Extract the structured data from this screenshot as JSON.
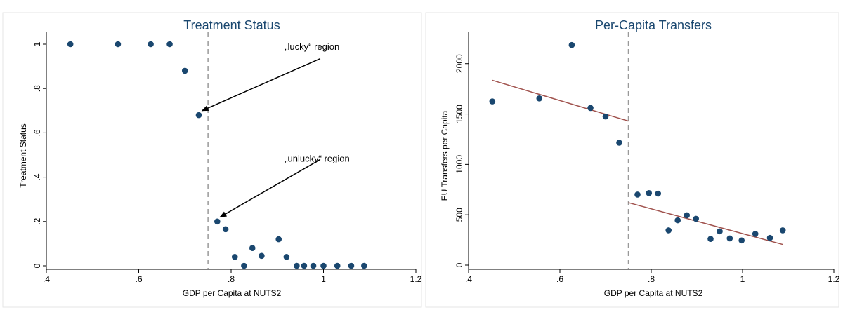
{
  "chart_data": [
    {
      "type": "scatter",
      "title": "Treatment Status",
      "xlabel": "GDP per Capita at NUTS2",
      "ylabel": "Treatment Status",
      "xlim": [
        0.4,
        1.2
      ],
      "ylim": [
        0,
        1
      ],
      "xticks": [
        0.4,
        0.6,
        0.8,
        1.0,
        1.2
      ],
      "xtick_labels": [
        ".4",
        ".6",
        ".8",
        "1",
        "1.2"
      ],
      "yticks": [
        0,
        0.2,
        0.4,
        0.6,
        0.8,
        1.0
      ],
      "ytick_labels": [
        "0",
        ".2",
        ".4",
        ".6",
        ".8",
        "1"
      ],
      "cutoff_x": 0.75,
      "grid": false,
      "points": [
        {
          "x": 0.452,
          "y": 1.0
        },
        {
          "x": 0.555,
          "y": 1.0
        },
        {
          "x": 0.626,
          "y": 1.0
        },
        {
          "x": 0.667,
          "y": 1.0
        },
        {
          "x": 0.7,
          "y": 0.88
        },
        {
          "x": 0.73,
          "y": 0.68
        },
        {
          "x": 0.77,
          "y": 0.2
        },
        {
          "x": 0.788,
          "y": 0.165
        },
        {
          "x": 0.808,
          "y": 0.04
        },
        {
          "x": 0.828,
          "y": 0.0
        },
        {
          "x": 0.846,
          "y": 0.08
        },
        {
          "x": 0.866,
          "y": 0.045
        },
        {
          "x": 0.903,
          "y": 0.12
        },
        {
          "x": 0.92,
          "y": 0.04
        },
        {
          "x": 0.942,
          "y": 0.0
        },
        {
          "x": 0.958,
          "y": 0.0
        },
        {
          "x": 0.978,
          "y": 0.0
        },
        {
          "x": 1.0,
          "y": 0.0
        },
        {
          "x": 1.03,
          "y": 0.0
        },
        {
          "x": 1.06,
          "y": 0.0
        },
        {
          "x": 1.088,
          "y": 0.0
        }
      ],
      "annotations": [
        {
          "text": "„lucky“ region",
          "text_x": 0.995,
          "text_y": 0.975,
          "tail_x": 0.993,
          "tail_y": 0.935,
          "head_x": 0.737,
          "head_y": 0.7
        },
        {
          "text": "„unlucky“ region",
          "text_x": 0.995,
          "text_y": 0.47,
          "tail_x": 0.993,
          "tail_y": 0.48,
          "head_x": 0.776,
          "head_y": 0.22
        }
      ]
    },
    {
      "type": "scatter",
      "title": "Per-Capita Transfers",
      "xlabel": "GDP per Capita at NUTS2",
      "ylabel": "EU Transfers per Capita",
      "xlim": [
        0.4,
        1.2
      ],
      "ylim": [
        0,
        2200
      ],
      "xticks": [
        0.4,
        0.6,
        0.8,
        1.0,
        1.2
      ],
      "xtick_labels": [
        ".4",
        ".6",
        ".8",
        "1",
        "1.2"
      ],
      "yticks": [
        0,
        500,
        1000,
        1500,
        2000
      ],
      "ytick_labels": [
        "0",
        "500",
        "1000",
        "1500",
        "2000"
      ],
      "cutoff_x": 0.75,
      "grid": false,
      "points": [
        {
          "x": 0.452,
          "y": 1625
        },
        {
          "x": 0.555,
          "y": 1655
        },
        {
          "x": 0.626,
          "y": 2185
        },
        {
          "x": 0.667,
          "y": 1560
        },
        {
          "x": 0.7,
          "y": 1475
        },
        {
          "x": 0.73,
          "y": 1215
        },
        {
          "x": 0.77,
          "y": 700
        },
        {
          "x": 0.795,
          "y": 715
        },
        {
          "x": 0.815,
          "y": 710
        },
        {
          "x": 0.838,
          "y": 345
        },
        {
          "x": 0.858,
          "y": 445
        },
        {
          "x": 0.878,
          "y": 495
        },
        {
          "x": 0.898,
          "y": 460
        },
        {
          "x": 0.93,
          "y": 260
        },
        {
          "x": 0.95,
          "y": 335
        },
        {
          "x": 0.972,
          "y": 265
        },
        {
          "x": 0.998,
          "y": 245
        },
        {
          "x": 1.028,
          "y": 310
        },
        {
          "x": 1.06,
          "y": 270
        },
        {
          "x": 1.088,
          "y": 345
        }
      ],
      "fit_lines": [
        {
          "x": [
            0.452,
            0.75
          ],
          "y": [
            1835,
            1430
          ]
        },
        {
          "x": [
            0.75,
            1.088
          ],
          "y": [
            620,
            205
          ]
        }
      ]
    }
  ]
}
